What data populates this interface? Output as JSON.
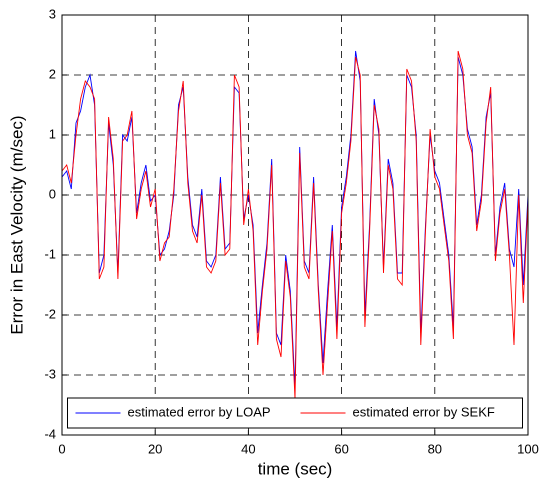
{
  "chart_data": {
    "type": "line",
    "xlabel": "time (sec)",
    "ylabel": "Error in East Velocity  (m/sec)",
    "x": [
      0,
      1,
      2,
      3,
      4,
      5,
      6,
      7,
      8,
      9,
      10,
      11,
      12,
      13,
      14,
      15,
      16,
      17,
      18,
      19,
      20,
      21,
      22,
      23,
      24,
      25,
      26,
      27,
      28,
      29,
      30,
      31,
      32,
      33,
      34,
      35,
      36,
      37,
      38,
      39,
      40,
      41,
      42,
      43,
      44,
      45,
      46,
      47,
      48,
      49,
      50,
      51,
      52,
      53,
      54,
      55,
      56,
      57,
      58,
      59,
      60,
      61,
      62,
      63,
      64,
      65,
      66,
      67,
      68,
      69,
      70,
      71,
      72,
      73,
      74,
      75,
      76,
      77,
      78,
      79,
      80,
      81,
      82,
      83,
      84,
      85,
      86,
      87,
      88,
      89,
      90,
      91,
      92,
      93,
      94,
      95,
      96,
      97,
      98,
      99,
      100
    ],
    "series": [
      {
        "name": "estimated error by  LOAP",
        "color": "#0000ff",
        "values": [
          0.3,
          0.4,
          0.1,
          1.2,
          1.4,
          1.8,
          2.0,
          1.5,
          -1.3,
          -1.0,
          1.2,
          0.5,
          -1.3,
          1.0,
          0.9,
          1.3,
          -0.3,
          0.2,
          0.5,
          -0.1,
          0.0,
          -1.0,
          -0.9,
          -0.6,
          0.0,
          1.5,
          1.8,
          0.3,
          -0.5,
          -0.7,
          0.1,
          -1.1,
          -1.2,
          -1.0,
          0.3,
          -0.9,
          -0.8,
          1.8,
          1.7,
          -0.4,
          0.0,
          -0.5,
          -2.3,
          -1.5,
          -0.8,
          0.6,
          -2.3,
          -2.5,
          -1.0,
          -1.6,
          -3.2,
          0.8,
          -1.1,
          -1.3,
          0.3,
          -1.5,
          -2.8,
          -1.6,
          -0.5,
          -2.2,
          -0.2,
          0.3,
          1.0,
          2.4,
          1.9,
          -2.0,
          -0.5,
          1.6,
          1.0,
          -1.2,
          0.6,
          0.2,
          -1.3,
          -1.3,
          2.0,
          1.8,
          1.0,
          -2.3,
          -0.5,
          1.0,
          0.4,
          0.2,
          -0.4,
          -1.0,
          -2.2,
          2.3,
          2.0,
          1.1,
          0.8,
          -0.5,
          0.0,
          1.3,
          1.7,
          -1.0,
          -0.2,
          0.2,
          -0.9,
          -1.2,
          0.1,
          -1.5,
          0.0
        ]
      },
      {
        "name": "estimated error by  SEKF",
        "color": "#ff0000",
        "values": [
          0.4,
          0.5,
          0.2,
          1.0,
          1.6,
          1.9,
          1.8,
          1.6,
          -1.4,
          -1.2,
          1.3,
          0.6,
          -1.4,
          0.9,
          1.0,
          1.4,
          -0.4,
          0.1,
          0.4,
          -0.2,
          0.1,
          -1.1,
          -0.8,
          -0.7,
          0.1,
          1.4,
          1.9,
          0.2,
          -0.6,
          -0.8,
          0.0,
          -1.2,
          -1.3,
          -1.1,
          0.2,
          -1.0,
          -0.9,
          2.0,
          1.8,
          -0.5,
          0.1,
          -0.6,
          -2.5,
          -1.6,
          -0.9,
          0.5,
          -2.4,
          -2.7,
          -1.1,
          -1.7,
          -3.4,
          0.7,
          -1.2,
          -1.4,
          0.2,
          -1.6,
          -3.0,
          -1.8,
          -0.6,
          -2.4,
          -0.3,
          0.2,
          0.9,
          2.3,
          2.0,
          -2.2,
          -0.6,
          1.5,
          1.1,
          -1.3,
          0.5,
          0.1,
          -1.4,
          -1.5,
          2.1,
          1.9,
          0.9,
          -2.5,
          -0.6,
          1.1,
          0.3,
          0.1,
          -0.5,
          -1.1,
          -2.4,
          2.4,
          2.1,
          1.0,
          0.7,
          -0.6,
          -0.1,
          1.2,
          1.8,
          -1.1,
          -0.3,
          0.1,
          -1.0,
          -2.5,
          0.0,
          -1.8,
          -0.1
        ]
      }
    ],
    "xlim": [
      0,
      100
    ],
    "xticks": [
      0,
      20,
      40,
      60,
      80,
      100
    ],
    "ylim": [
      -4,
      3
    ],
    "yticks": [
      -4,
      -3,
      -2,
      -1,
      0,
      1,
      2,
      3
    ],
    "grid": true,
    "legend": "lower center"
  }
}
